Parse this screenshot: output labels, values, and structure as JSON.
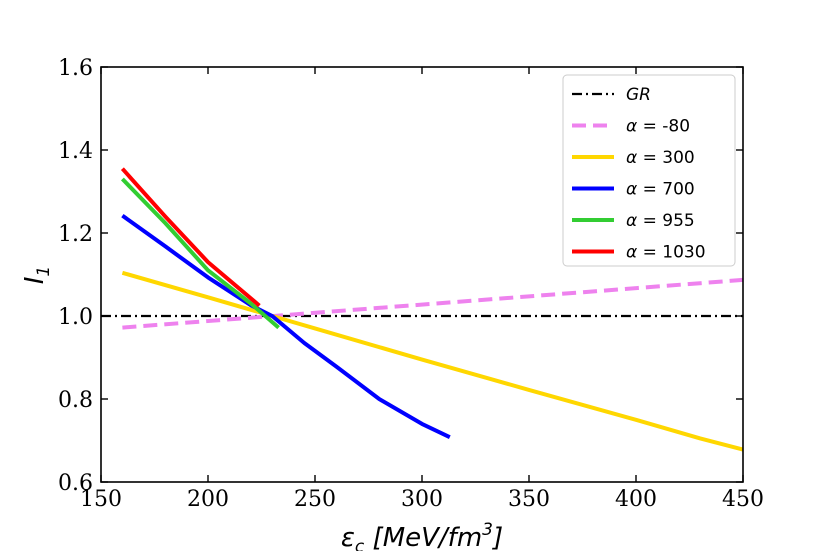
{
  "chart_data": {
    "type": "line",
    "xlabel_main": "ε",
    "xlabel_sub": "c",
    "xlabel_units": " [MeV/fm",
    "xlabel_units_sup": "3",
    "xlabel_units_close": "]",
    "ylabel_main": "I",
    "ylabel_sub": "1",
    "xlim": [
      150,
      450
    ],
    "ylim": [
      0.6,
      1.6
    ],
    "xticks": [
      150,
      200,
      250,
      300,
      350,
      400,
      450
    ],
    "yticks": [
      0.6,
      0.8,
      1.0,
      1.2,
      1.4,
      1.6
    ],
    "legend_position": "top-right",
    "grid": false,
    "series": [
      {
        "name": "GR",
        "legend_math": false,
        "color": "#000000",
        "dash": "dashdot",
        "x": [
          150,
          450
        ],
        "y": [
          1.0,
          1.0
        ]
      },
      {
        "name": "α = -80",
        "legend_math": true,
        "alpha": "-80",
        "color": "#ee82ee",
        "dash": "dashed",
        "x": [
          160,
          450
        ],
        "y": [
          0.972,
          1.087
        ]
      },
      {
        "name": "α = 300",
        "legend_math": true,
        "alpha": "300",
        "color": "#ffd700",
        "dash": "solid",
        "x": [
          160,
          200,
          230,
          250,
          300,
          350,
          400,
          430,
          450
        ],
        "y": [
          1.104,
          1.045,
          1.0,
          0.97,
          0.895,
          0.822,
          0.75,
          0.705,
          0.678
        ]
      },
      {
        "name": "α = 700",
        "legend_math": true,
        "alpha": "700",
        "color": "#0000ff",
        "dash": "solid",
        "x": [
          160,
          180,
          200,
          220,
          230,
          245,
          260,
          280,
          300,
          313
        ],
        "y": [
          1.242,
          1.168,
          1.093,
          1.026,
          1.0,
          0.935,
          0.878,
          0.8,
          0.74,
          0.708
        ]
      },
      {
        "name": "α = 955",
        "legend_math": true,
        "alpha": "955",
        "color": "#32cd32",
        "dash": "solid",
        "x": [
          160,
          180,
          200,
          220,
          233
        ],
        "y": [
          1.33,
          1.224,
          1.11,
          1.03,
          0.972
        ]
      },
      {
        "name": "α = 1030",
        "legend_math": true,
        "alpha": "1030",
        "color": "#ff0000",
        "dash": "solid",
        "x": [
          160,
          180,
          200,
          224
        ],
        "y": [
          1.355,
          1.24,
          1.13,
          1.025
        ]
      }
    ]
  }
}
